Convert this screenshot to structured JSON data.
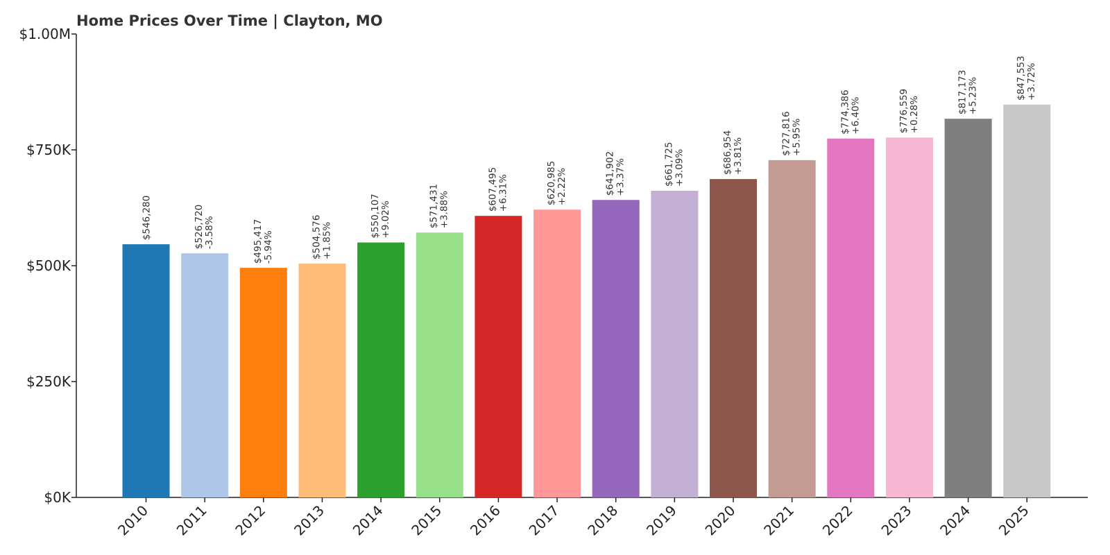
{
  "chart_data": {
    "type": "bar",
    "title": "Home Prices Over Time | Clayton, MO",
    "xlabel": "",
    "ylabel": "",
    "ylim": [
      0,
      1000000
    ],
    "yticks": [
      {
        "value": 0,
        "label": "$0K"
      },
      {
        "value": 250000,
        "label": "$250K"
      },
      {
        "value": 500000,
        "label": "$500K"
      },
      {
        "value": 750000,
        "label": "$750K"
      },
      {
        "value": 1000000,
        "label": "$1.00M"
      }
    ],
    "grid": false,
    "categories": [
      "2010",
      "2011",
      "2012",
      "2013",
      "2014",
      "2015",
      "2016",
      "2017",
      "2018",
      "2019",
      "2020",
      "2021",
      "2022",
      "2023",
      "2024",
      "2025"
    ],
    "values": [
      546280,
      526720,
      495417,
      504576,
      550107,
      571431,
      607495,
      620985,
      641902,
      661725,
      686954,
      727816,
      774386,
      776559,
      817173,
      847553
    ],
    "value_labels": [
      "$546,280",
      "$526,720",
      "$495,417",
      "$504,576",
      "$550,107",
      "$571,431",
      "$607,495",
      "$620,985",
      "$641,902",
      "$661,725",
      "$686,954",
      "$727,816",
      "$774,386",
      "$776,559",
      "$817,173",
      "$847,553"
    ],
    "change_labels": [
      "",
      "-3.58%",
      "-5.94%",
      "+1.85%",
      "+9.02%",
      "+3.88%",
      "+6.31%",
      "+2.22%",
      "+3.37%",
      "+3.09%",
      "+3.81%",
      "+5.95%",
      "+6.40%",
      "+0.28%",
      "+5.23%",
      "+3.72%"
    ],
    "colors": [
      "#1f77b4",
      "#aec7e8",
      "#ff7f0e",
      "#ffbb78",
      "#2ca02c",
      "#98df8a",
      "#d62728",
      "#ff9896",
      "#9467bd",
      "#c5b0d5",
      "#8c564b",
      "#c49c94",
      "#e377c2",
      "#f7b6d2",
      "#7f7f7f",
      "#c7c7c7"
    ]
  }
}
